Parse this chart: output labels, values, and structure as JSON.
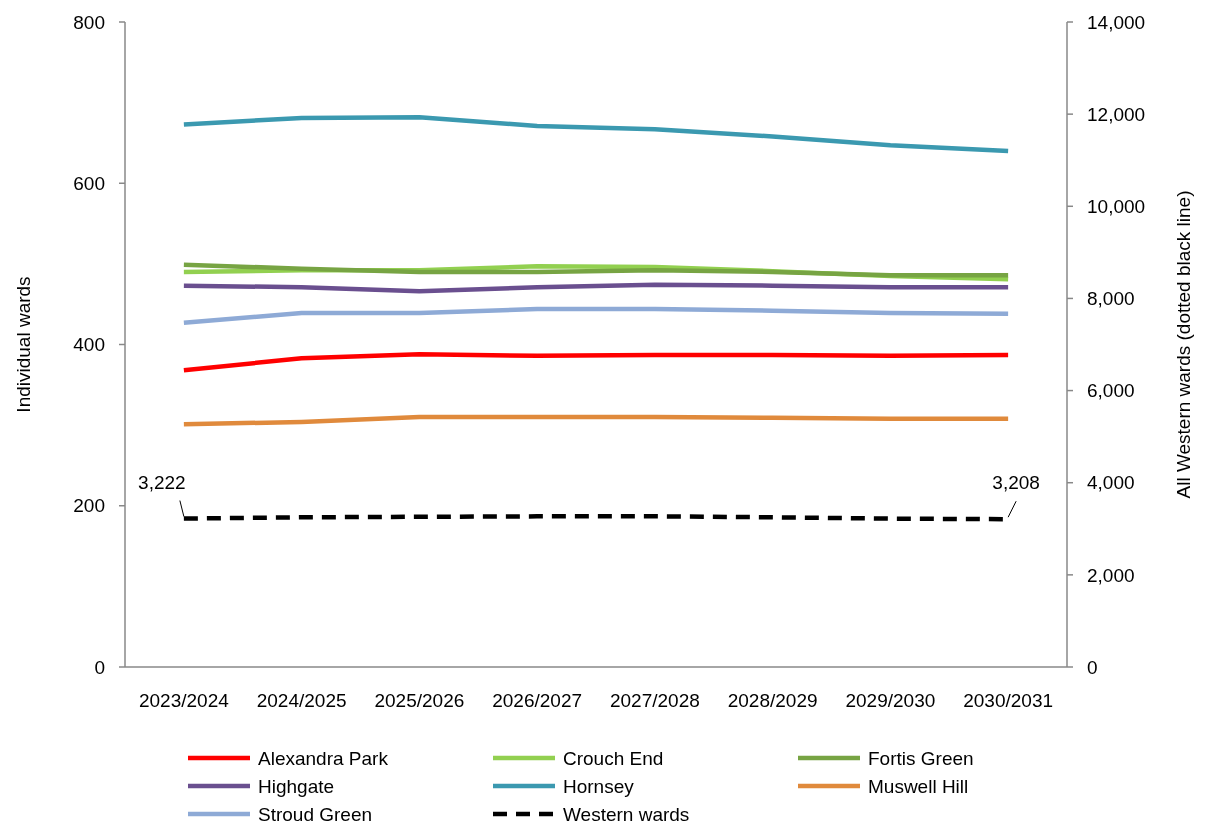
{
  "chart_data": {
    "type": "line",
    "categories": [
      "2023/2024",
      "2024/2025",
      "2025/2026",
      "2026/2027",
      "2027/2028",
      "2028/2029",
      "2029/2030",
      "2030/2031"
    ],
    "ylabel": "Individual wards",
    "y2label": "All Western wards (dotted black line)",
    "ylim": [
      0,
      800
    ],
    "yticks": [
      0,
      200,
      400,
      600,
      800
    ],
    "y2lim": [
      0,
      14000
    ],
    "y2ticks": [
      {
        "value": 0,
        "label": "0"
      },
      {
        "value": 2000,
        "label": "2,000"
      },
      {
        "value": 4000,
        "label": "4,000"
      },
      {
        "value": 6000,
        "label": "6,000"
      },
      {
        "value": 8000,
        "label": "8,000"
      },
      {
        "value": 10000,
        "label": "10,000"
      },
      {
        "value": 12000,
        "label": "12,000"
      },
      {
        "value": 14000,
        "label": "14,000"
      }
    ],
    "legend": "bottom",
    "grid": false,
    "marker": "none",
    "series": [
      {
        "name": "Alexandra Park",
        "color": "#ff0000",
        "values": [
          368,
          383,
          388,
          386,
          387,
          387,
          386,
          387
        ]
      },
      {
        "name": "Crouch End",
        "color": "#92d050",
        "values": [
          490,
          492,
          492,
          497,
          496,
          491,
          485,
          481
        ]
      },
      {
        "name": "Fortis Green",
        "color": "#77a443",
        "values": [
          499,
          494,
          490,
          490,
          492,
          490,
          486,
          486
        ]
      },
      {
        "name": "Highgate",
        "color": "#6a4f8f",
        "values": [
          473,
          471,
          466,
          471,
          474,
          473,
          471,
          471
        ]
      },
      {
        "name": "Hornsey",
        "color": "#3b99b0",
        "values": [
          673,
          681,
          682,
          671,
          667,
          658,
          647,
          640
        ]
      },
      {
        "name": "Muswell Hill",
        "color": "#e08a3c",
        "values": [
          301,
          304,
          310,
          310,
          310,
          309,
          308,
          308
        ]
      },
      {
        "name": "Stroud Green",
        "color": "#8eaad6",
        "values": [
          427,
          439,
          439,
          444,
          444,
          442,
          439,
          438
        ]
      },
      {
        "name": "Western wards",
        "color": "#000000",
        "axis": "y2",
        "line_style": "dashed",
        "values": [
          3222,
          3250,
          3260,
          3270,
          3270,
          3250,
          3220,
          3208
        ],
        "value_labels": [
          "3,222",
          null,
          null,
          null,
          null,
          null,
          null,
          "3,208"
        ]
      }
    ]
  }
}
